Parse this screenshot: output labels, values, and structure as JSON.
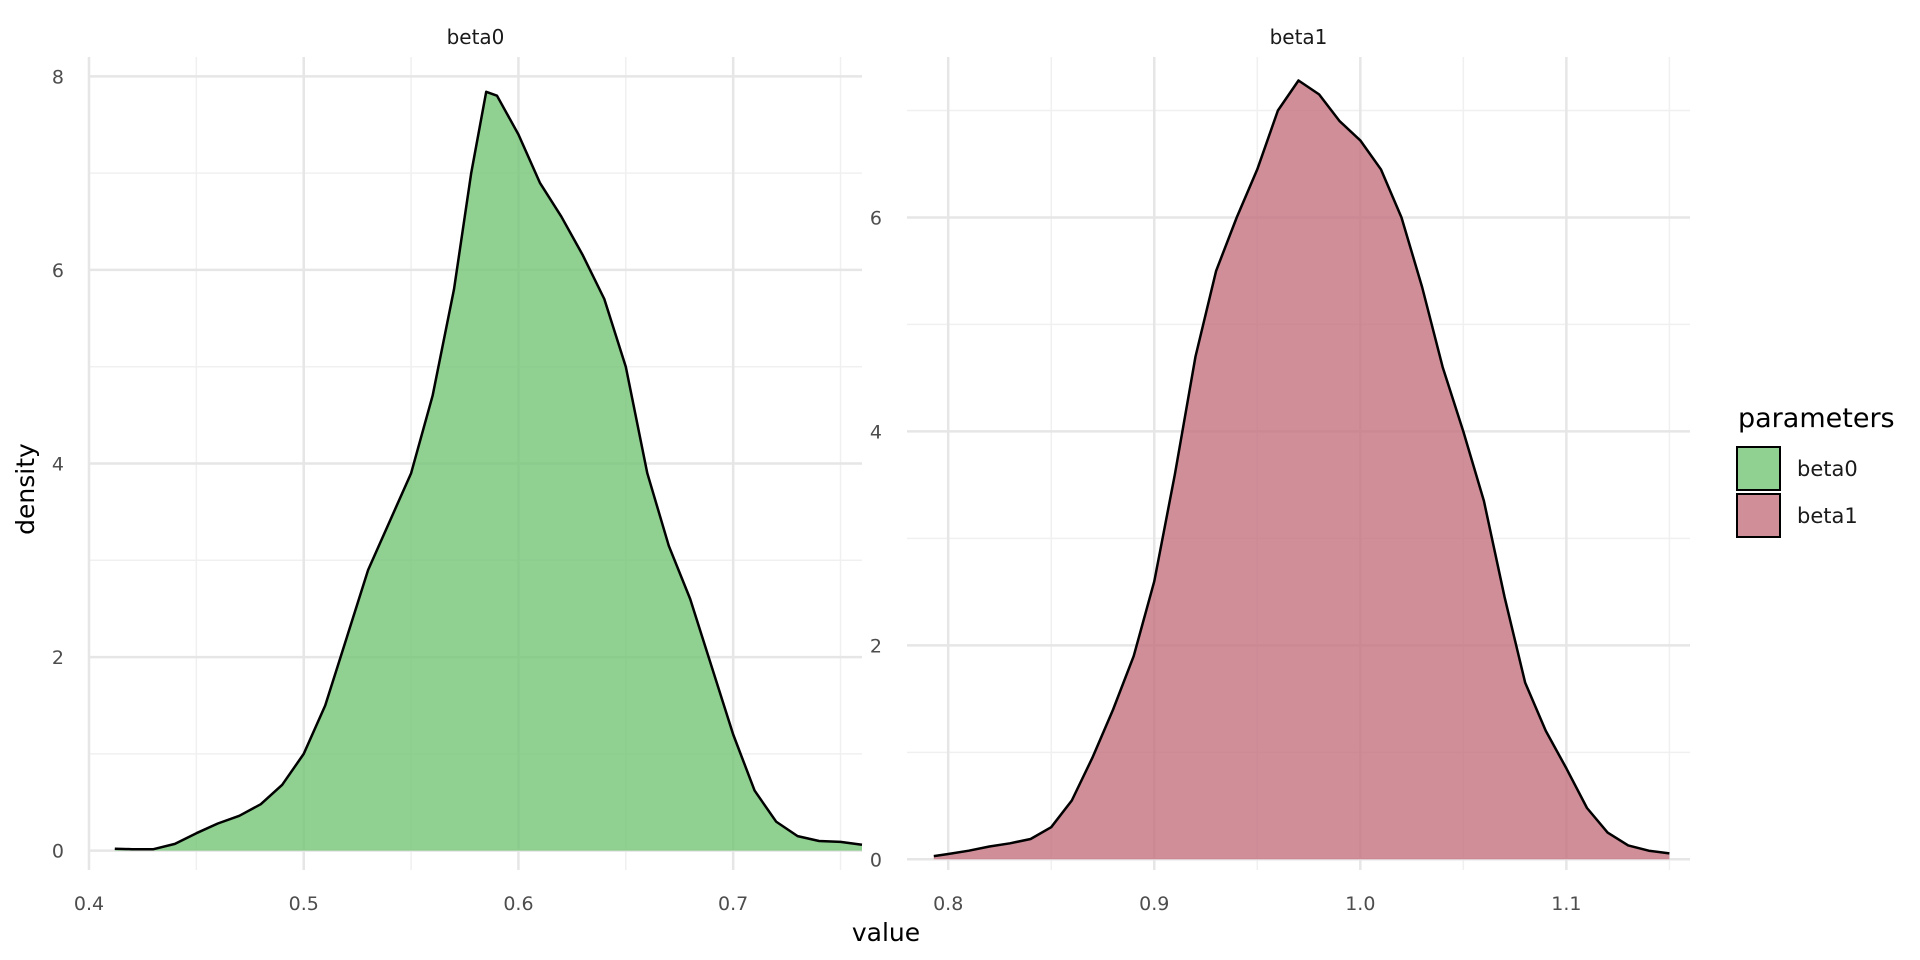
{
  "chart_data": {
    "type": "area",
    "subtype": "faceted density",
    "xlabel": "value",
    "ylabel": "density",
    "legend": {
      "title": "parameters",
      "position": "right",
      "entries": [
        "beta0",
        "beta1"
      ]
    },
    "grid": true,
    "facets": [
      {
        "name": "beta0",
        "color": "#74C476",
        "xlim": [
          0.4,
          0.76
        ],
        "ylim": [
          -0.2,
          8.2
        ],
        "x_ticks": [
          "0.4",
          "0.5",
          "0.6",
          "0.7"
        ],
        "y_ticks": [
          "0",
          "2",
          "4",
          "6",
          "8"
        ],
        "x_tick_values": [
          0.4,
          0.5,
          0.6,
          0.7
        ],
        "y_tick_values": [
          0,
          2,
          4,
          6,
          8
        ],
        "x_minor_values": [
          0.45,
          0.55,
          0.65,
          0.75
        ],
        "y_minor_values": [
          1,
          3,
          5,
          7
        ],
        "points": [
          [
            0.412,
            0.02
          ],
          [
            0.42,
            0.015
          ],
          [
            0.43,
            0.015
          ],
          [
            0.44,
            0.07
          ],
          [
            0.45,
            0.18
          ],
          [
            0.46,
            0.28
          ],
          [
            0.47,
            0.36
          ],
          [
            0.48,
            0.48
          ],
          [
            0.49,
            0.68
          ],
          [
            0.5,
            1.0
          ],
          [
            0.51,
            1.5
          ],
          [
            0.52,
            2.2
          ],
          [
            0.53,
            2.9
          ],
          [
            0.54,
            3.4
          ],
          [
            0.55,
            3.9
          ],
          [
            0.56,
            4.7
          ],
          [
            0.57,
            5.8
          ],
          [
            0.578,
            7.0
          ],
          [
            0.585,
            7.84
          ],
          [
            0.59,
            7.8
          ],
          [
            0.6,
            7.4
          ],
          [
            0.61,
            6.9
          ],
          [
            0.62,
            6.55
          ],
          [
            0.63,
            6.15
          ],
          [
            0.64,
            5.7
          ],
          [
            0.65,
            5.0
          ],
          [
            0.66,
            3.9
          ],
          [
            0.67,
            3.15
          ],
          [
            0.68,
            2.6
          ],
          [
            0.69,
            1.9
          ],
          [
            0.7,
            1.2
          ],
          [
            0.71,
            0.62
          ],
          [
            0.72,
            0.3
          ],
          [
            0.73,
            0.15
          ],
          [
            0.74,
            0.1
          ],
          [
            0.75,
            0.09
          ],
          [
            0.76,
            0.06
          ]
        ]
      },
      {
        "name": "beta1",
        "color": "#C4727F",
        "xlim": [
          0.78,
          1.16
        ],
        "ylim": [
          -0.1,
          7.5
        ],
        "x_ticks": [
          "0.8",
          "0.9",
          "1.0",
          "1.1"
        ],
        "y_ticks": [
          "0",
          "2",
          "4",
          "6"
        ],
        "x_tick_values": [
          0.8,
          0.9,
          1.0,
          1.1
        ],
        "y_tick_values": [
          0,
          2,
          4,
          6
        ],
        "x_minor_values": [
          0.85,
          0.95,
          1.05,
          1.15
        ],
        "y_minor_values": [
          1,
          3,
          5,
          7
        ],
        "points": [
          [
            0.793,
            0.03
          ],
          [
            0.8,
            0.05
          ],
          [
            0.81,
            0.08
          ],
          [
            0.82,
            0.12
          ],
          [
            0.83,
            0.15
          ],
          [
            0.84,
            0.19
          ],
          [
            0.85,
            0.3
          ],
          [
            0.86,
            0.55
          ],
          [
            0.87,
            0.95
          ],
          [
            0.88,
            1.4
          ],
          [
            0.89,
            1.9
          ],
          [
            0.9,
            2.6
          ],
          [
            0.91,
            3.6
          ],
          [
            0.92,
            4.7
          ],
          [
            0.93,
            5.5
          ],
          [
            0.94,
            6.0
          ],
          [
            0.95,
            6.45
          ],
          [
            0.96,
            7.0
          ],
          [
            0.97,
            7.28
          ],
          [
            0.98,
            7.15
          ],
          [
            0.99,
            6.9
          ],
          [
            1.0,
            6.72
          ],
          [
            1.01,
            6.45
          ],
          [
            1.02,
            6.0
          ],
          [
            1.03,
            5.35
          ],
          [
            1.04,
            4.6
          ],
          [
            1.05,
            4.0
          ],
          [
            1.06,
            3.35
          ],
          [
            1.07,
            2.45
          ],
          [
            1.08,
            1.65
          ],
          [
            1.09,
            1.2
          ],
          [
            1.1,
            0.85
          ],
          [
            1.11,
            0.48
          ],
          [
            1.12,
            0.25
          ],
          [
            1.13,
            0.13
          ],
          [
            1.14,
            0.08
          ],
          [
            1.15,
            0.055
          ]
        ]
      }
    ]
  }
}
